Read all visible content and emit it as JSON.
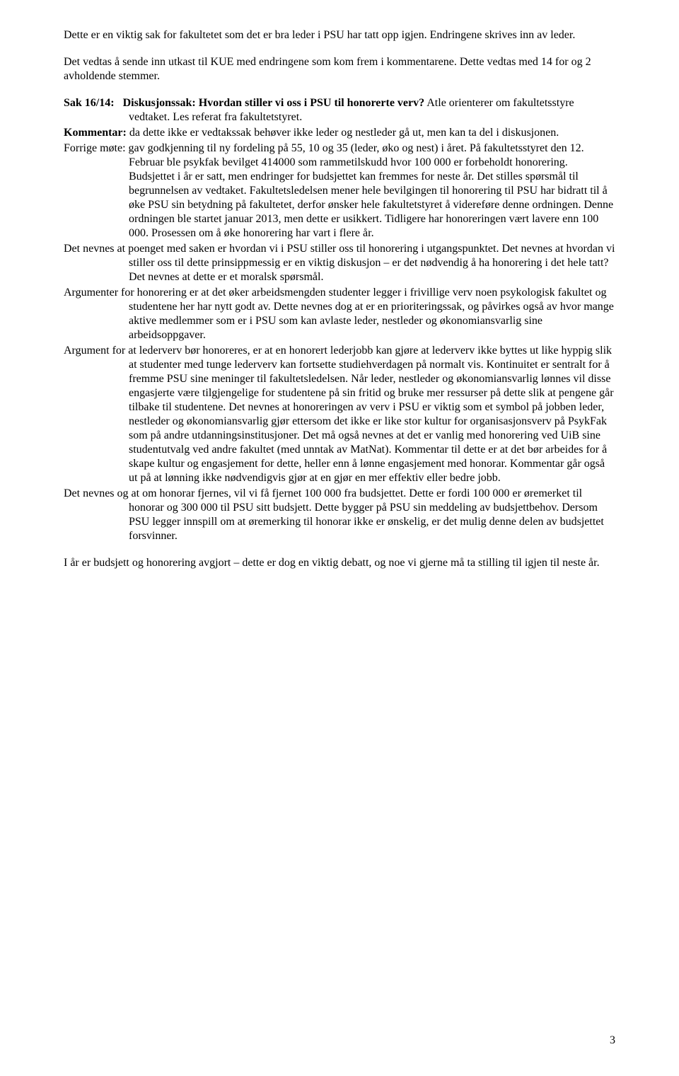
{
  "intro1": "Dette er en viktig sak for fakultetet som det er bra leder i PSU har tatt opp igjen. Endringene skrives inn av leder.",
  "intro2": "Det vedtas å sende inn utkast til KUE med endringene som kom frem i kommentarene. Dette vedtas med 14 for og 2 avholdende stemmer.",
  "sak": {
    "label": "Sak 16/14:",
    "text": "Diskusjonssak: Hvordan stiller vi oss i PSU til honorerte verv?",
    "cont": "Atle orienterer om fakultetsstyre vedtaket. Les referat fra fakultetstyret."
  },
  "kommentar": {
    "label": "Kommentar:",
    "text": "da dette ikke er vedtakssak behøver ikke leder og nestleder gå ut, men kan ta del i diskusjonen."
  },
  "forrige": {
    "start": "Forrige møte: gav godkjenning til ny fordeling på 55, 10 og 35 (leder, øko og nest) i året. På fakultetsstyret den 12. Februar ble psykfak bevilget 414000 som rammetilskudd hvor 100 000 er forbeholdt honorering. Budsjettet i år er satt, men endringer for budsjettet kan fremmes for neste år. Det stilles spørsmål til begrunnelsen av vedtaket. Fakultetsledelsen mener hele bevilgingen til honorering til PSU har bidratt til å øke PSU sin betydning på fakultetet, derfor ønsker hele fakultetstyret å videreføre denne ordningen. Denne ordningen ble startet januar 2013, men dette er usikkert. Tidligere har honoreringen vært lavere enn 100 000. Prosessen om å øke honorering har vart i flere år."
  },
  "p1": "Det nevnes at poenget med saken er hvordan vi i PSU stiller oss til honorering i utgangspunktet. Det nevnes at hvordan vi stiller oss til dette prinsippmessig er en viktig diskusjon – er det nødvendig å ha honorering i det hele tatt? Det nevnes at dette er et moralsk spørsmål.",
  "p2": "Argumenter for honorering er at det øker arbeidsmengden studenter legger i frivillige verv noen psykologisk fakultet og studentene her har nytt godt av. Dette nevnes dog at er en prioriteringssak, og påvirkes også av hvor mange aktive medlemmer som er i PSU  som kan avlaste leder, nestleder og økonomiansvarlig sine arbeidsoppgaver.",
  "p3": "Argument for at lederverv bør honoreres, er at en honorert lederjobb kan gjøre at lederverv ikke byttes ut like hyppig slik at studenter med tunge lederverv kan fortsette studiehverdagen på normalt vis. Kontinuitet er sentralt for å fremme PSU sine meninger til fakultetsledelsen. Når leder, nestleder og økonomiansvarlig lønnes vil disse engasjerte være tilgjengelige for studentene på sin fritid og bruke mer ressurser på dette slik at pengene går tilbake til studentene. Det nevnes at honoreringen av verv i PSU er viktig som et symbol på jobben leder, nestleder og økonomiansvarlig gjør ettersom det ikke er like stor kultur for organisasjonsverv på PsykFak som på andre utdanningsinstitusjoner. Det må også nevnes at det er vanlig med honorering ved UiB sine studentutvalg ved andre fakultet (med unntak av MatNat). Kommentar til dette er at det bør arbeides for å skape kultur og engasjement for dette, heller enn å lønne engasjement med honorar. Kommentar går også ut på at lønning ikke nødvendigvis gjør at en gjør en mer effektiv eller bedre jobb.",
  "p4": "Det nevnes og at om honorar fjernes, vil vi få fjernet 100 000 fra budsjettet. Dette er fordi 100 000 er øremerket til honorar og 300 000 til PSU sitt budsjett. Dette bygger på PSU sin meddeling av budsjettbehov. Dersom PSU legger innspill om at øremerking til honorar ikke er ønskelig, er det mulig denne delen av budsjettet forsvinner.",
  "final": "I år er budsjett og honorering avgjort – dette er dog en viktig debatt, og noe vi gjerne må ta stilling til igjen til neste år.",
  "pageNumber": "3"
}
